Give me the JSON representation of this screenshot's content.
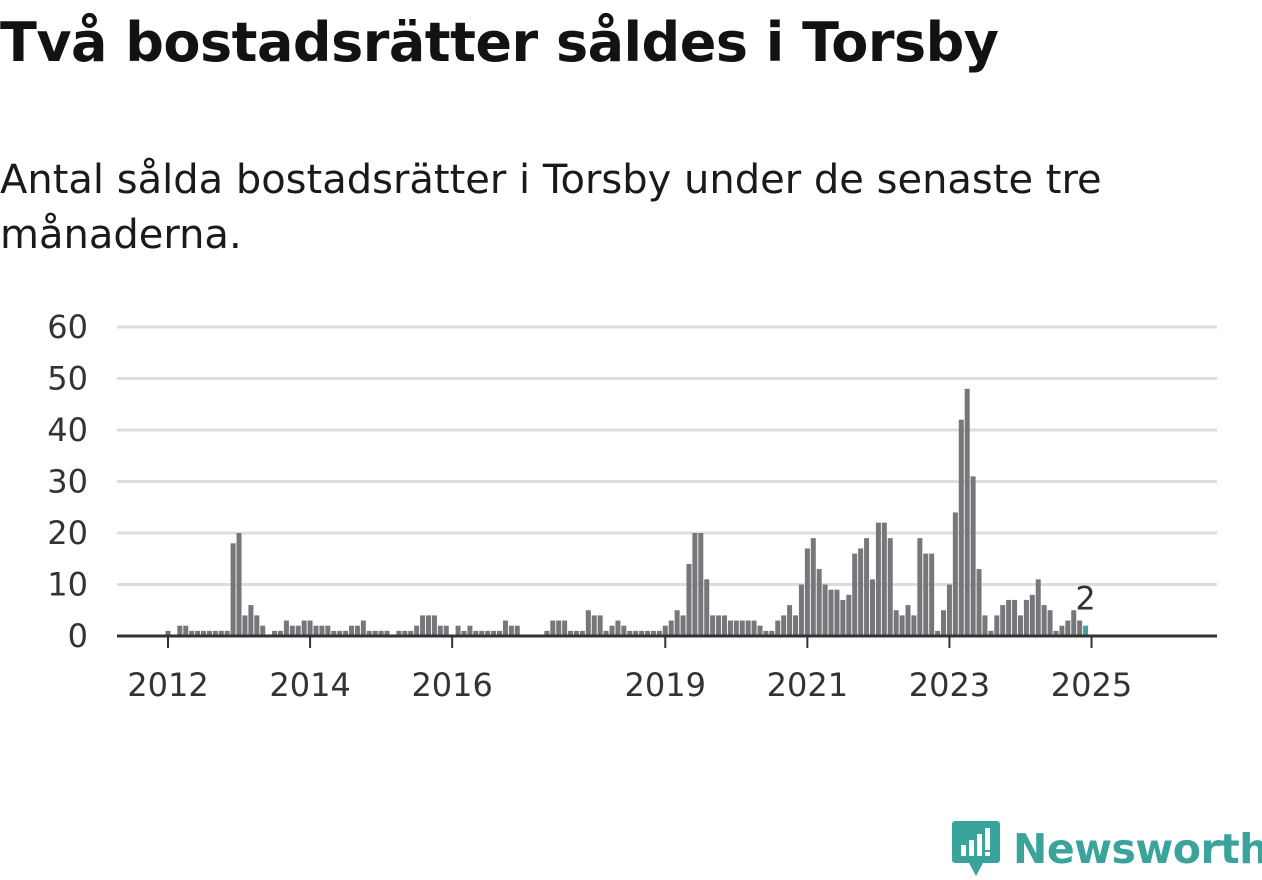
{
  "title": "Två bostadsrätter såldes i Torsby",
  "subtitle": "Antal sålda bostadsrätter i Torsby under de senaste tre månaderna.",
  "brand": {
    "name": "Newsworthy",
    "icon": "newsworthy-logo-icon",
    "color": "#3aa39b"
  },
  "colors": {
    "bar": "#77767b",
    "highlight": "#3aa39b",
    "grid": "#dddddd",
    "axis": "#333333"
  },
  "chart_data": {
    "type": "bar",
    "title": "",
    "xlabel": "",
    "ylabel": "",
    "ylim": [
      0,
      60
    ],
    "yticks": [
      0,
      10,
      20,
      30,
      40,
      50,
      60
    ],
    "grid": true,
    "start": "2012-01",
    "xticks": [
      {
        "label": "2012",
        "month": "2012-01"
      },
      {
        "label": "2014",
        "month": "2014-01"
      },
      {
        "label": "2016",
        "month": "2016-01"
      },
      {
        "label": "2019",
        "month": "2019-01"
      },
      {
        "label": "2021",
        "month": "2021-01"
      },
      {
        "label": "2023",
        "month": "2023-01"
      },
      {
        "label": "2025",
        "month": "2025-01"
      }
    ],
    "values": [
      1,
      0,
      2,
      2,
      1,
      1,
      1,
      1,
      1,
      1,
      1,
      18,
      20,
      4,
      6,
      4,
      2,
      0,
      1,
      1,
      3,
      2,
      2,
      3,
      3,
      2,
      2,
      2,
      1,
      1,
      1,
      2,
      2,
      3,
      1,
      1,
      1,
      1,
      0,
      1,
      1,
      1,
      2,
      4,
      4,
      4,
      2,
      2,
      0,
      2,
      1,
      2,
      1,
      1,
      1,
      1,
      1,
      3,
      2,
      2,
      0,
      0,
      0,
      0,
      1,
      3,
      3,
      3,
      1,
      1,
      1,
      5,
      4,
      4,
      1,
      2,
      3,
      2,
      1,
      1,
      1,
      1,
      1,
      1,
      2,
      3,
      5,
      4,
      14,
      20,
      20,
      11,
      4,
      4,
      4,
      3,
      3,
      3,
      3,
      3,
      2,
      1,
      1,
      3,
      4,
      6,
      4,
      10,
      17,
      19,
      13,
      10,
      9,
      9,
      7,
      8,
      16,
      17,
      19,
      11,
      22,
      22,
      19,
      5,
      4,
      6,
      4,
      19,
      16,
      16,
      1,
      5,
      10,
      24,
      42,
      48,
      31,
      13,
      4,
      1,
      4,
      6,
      7,
      7,
      4,
      7,
      8,
      11,
      6,
      5,
      1,
      2,
      3,
      5,
      3,
      2
    ],
    "highlight_last": true,
    "annotation": "2"
  }
}
